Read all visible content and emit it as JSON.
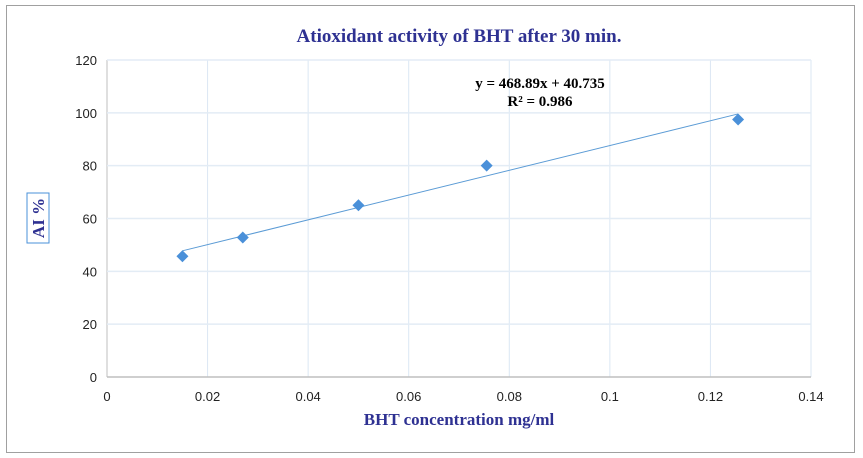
{
  "chart_data": {
    "type": "scatter",
    "title": "Atioxidant activity of BHT after 30 min.",
    "xlabel": "BHT concentration mg/ml",
    "ylabel": "AI %",
    "xlim": [
      0,
      0.14
    ],
    "ylim": [
      0,
      120
    ],
    "xticks": [
      "0",
      "0.02",
      "0.04",
      "0.06",
      "0.08",
      "0.1",
      "0.12",
      "0.14"
    ],
    "yticks": [
      "0",
      "20",
      "40",
      "60",
      "80",
      "100",
      "120"
    ],
    "grid": true,
    "points": [
      {
        "x": 0.015,
        "y": 45.7
      },
      {
        "x": 0.027,
        "y": 52.8
      },
      {
        "x": 0.05,
        "y": 65
      },
      {
        "x": 0.0755,
        "y": 80
      },
      {
        "x": 0.1255,
        "y": 97.5
      }
    ],
    "trendline": {
      "slope": 468.89,
      "intercept": 40.735,
      "equation": "y = 468.89x + 40.735",
      "r2": "R² = 0.986"
    },
    "colors": {
      "marker": "#4a90d9",
      "line": "#5b9bd5",
      "title": "#2e3192"
    }
  }
}
